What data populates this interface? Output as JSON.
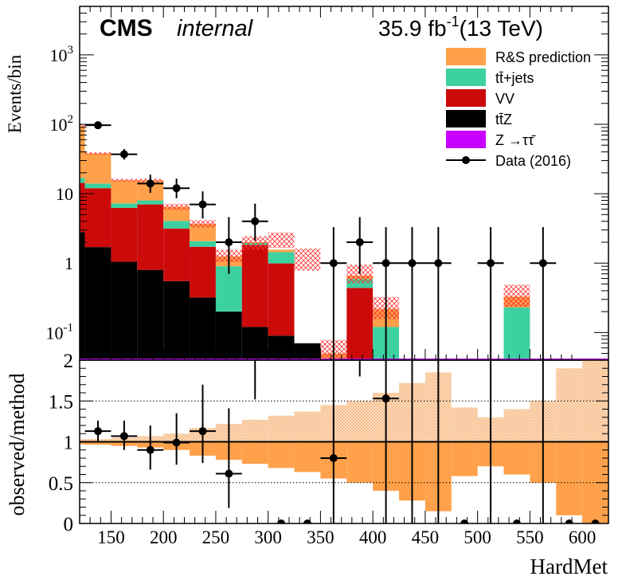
{
  "chart_data": [
    {
      "type": "bar",
      "stacked": true,
      "yscale": "log",
      "header": {
        "experiment": "CMS",
        "status": "internal",
        "lumi": "35.9 fb",
        "lumi_exp": "-1",
        "energy": "(13 TeV)"
      },
      "ylabel": "Events/bin",
      "ylim": [
        0.04,
        5000
      ],
      "yticks": [
        {
          "value": 0.1,
          "label": "10",
          "exp": "-1"
        },
        {
          "value": 1,
          "label": "1",
          "exp": ""
        },
        {
          "value": 10,
          "label": "10",
          "exp": ""
        },
        {
          "value": 100,
          "label": "10",
          "exp": "2"
        },
        {
          "value": 1000,
          "label": "10",
          "exp": "3"
        }
      ],
      "bin_edges": [
        100,
        125,
        150,
        175,
        200,
        225,
        250,
        275,
        300,
        325,
        350,
        375,
        400,
        425,
        450,
        475,
        500,
        525,
        550,
        575,
        600,
        625
      ],
      "series": [
        {
          "name": "tt̄Z",
          "color": "#000000",
          "values": [
            2.8,
            1.7,
            1.05,
            0.8,
            0.55,
            0.32,
            0.2,
            0.12,
            0.09,
            0.07,
            0,
            0,
            0,
            0,
            0,
            0,
            0,
            0,
            0,
            0,
            0
          ]
        },
        {
          "name": "VV",
          "color": "#cc0a0a",
          "values": [
            11.5,
            10.3,
            5.2,
            6.2,
            2.6,
            1.4,
            0,
            1.7,
            0.9,
            0,
            0,
            0.44,
            0,
            0,
            0,
            0,
            0,
            0,
            0,
            0,
            0
          ]
        },
        {
          "name": "tt̄+jets",
          "color": "#3dd1a0",
          "values": [
            2.5,
            2.0,
            1.0,
            1.0,
            0.9,
            0.35,
            0.7,
            0.13,
            0.45,
            0,
            0,
            0.15,
            0.12,
            0,
            0,
            0,
            0,
            0.23,
            0,
            0,
            0
          ]
        },
        {
          "name": "Z →ττ̄",
          "color": "#c800ff",
          "values": [
            0.065,
            0,
            0,
            0,
            0,
            0,
            0,
            0,
            0,
            0,
            0,
            0,
            0,
            0,
            0,
            0,
            0,
            0,
            0,
            0,
            0
          ]
        },
        {
          "name": "R&S prediction",
          "color": "#ffa14a",
          "values": [
            78,
            24,
            8.3,
            7.5,
            2.4,
            1.6,
            0.35,
            0.05,
            0.12,
            0,
            0.05,
            0.07,
            0.1,
            0,
            0,
            0,
            0,
            0.1,
            0,
            0,
            0
          ]
        }
      ],
      "band_total": [
        95,
        38,
        15.6,
        15.5,
        6.5,
        3.7,
        1.3,
        2.0,
        2.2,
        1.2,
        0.06,
        0.73,
        0.24,
        0,
        0,
        0,
        0,
        0.36,
        0,
        0,
        0
      ],
      "band_rel_err": [
        0.04,
        0.04,
        0.05,
        0.06,
        0.1,
        0.12,
        0.2,
        0.22,
        0.25,
        0.35,
        0.3,
        0.3,
        0.35,
        0,
        0,
        0,
        0,
        0.35,
        0,
        0,
        0
      ],
      "data": {
        "name": "Data (2016)",
        "points": [
          {
            "x": 137.5,
            "y": 97,
            "err_up": 11,
            "err_dn": 10
          },
          {
            "x": 162.5,
            "y": 37,
            "err_up": 7,
            "err_dn": 6
          },
          {
            "x": 187.5,
            "y": 14,
            "err_up": 4.8,
            "err_dn": 3.7
          },
          {
            "x": 212.5,
            "y": 12,
            "err_up": 4.5,
            "err_dn": 3.4
          },
          {
            "x": 237.5,
            "y": 7,
            "err_up": 3.8,
            "err_dn": 2.6
          },
          {
            "x": 262.5,
            "y": 2,
            "err_up": 2.6,
            "err_dn": 1.3
          },
          {
            "x": 287.5,
            "y": 4,
            "err_up": 3.2,
            "err_dn": 1.9
          },
          {
            "x": 362.5,
            "y": 1,
            "err_up": 2.3,
            "err_dn": 0.99
          },
          {
            "x": 387.5,
            "y": 2,
            "err_up": 2.6,
            "err_dn": 1.3
          },
          {
            "x": 412.5,
            "y": 1,
            "err_up": 2.3,
            "err_dn": 0.99
          },
          {
            "x": 437.5,
            "y": 1,
            "err_up": 2.3,
            "err_dn": 0.99
          },
          {
            "x": 462.5,
            "y": 1,
            "err_up": 2.3,
            "err_dn": 0.99
          },
          {
            "x": 512.5,
            "y": 1,
            "err_up": 2.3,
            "err_dn": 0.99
          },
          {
            "x": 562.5,
            "y": 1,
            "err_up": 2.3,
            "err_dn": 0.99
          }
        ]
      },
      "legend": {
        "placement": "top-right",
        "entries": [
          {
            "label": "R&S prediction",
            "kind": "fill",
            "color": "#ffa14a"
          },
          {
            "label": "tt̄+jets",
            "kind": "fill",
            "color": "#3dd1a0"
          },
          {
            "label": "VV",
            "kind": "fill",
            "color": "#cc0a0a"
          },
          {
            "label": "tt̄Z",
            "kind": "fill",
            "color": "#000000"
          },
          {
            "label": "Z →ττ̄",
            "kind": "fill",
            "color": "#c800ff"
          },
          {
            "label": "Data (2016)",
            "kind": "marker",
            "color": "#000000"
          }
        ]
      }
    },
    {
      "type": "bar",
      "xlabel": "HardMet",
      "ylabel": "observed/method",
      "xlim": [
        120,
        625
      ],
      "ylim": [
        0,
        2
      ],
      "xticks": [
        150,
        200,
        250,
        300,
        350,
        400,
        450,
        500,
        550,
        600
      ],
      "yticks": [
        {
          "value": 0,
          "label": "0"
        },
        {
          "value": 0.5,
          "label": "0.5"
        },
        {
          "value": 1,
          "label": "1"
        },
        {
          "value": 1.5,
          "label": "1.5"
        },
        {
          "value": 2,
          "label": "2"
        }
      ],
      "reference_lines": [
        1
      ],
      "dotted_lines": [
        0.5,
        1.5
      ],
      "bin_edges": [
        100,
        125,
        150,
        175,
        200,
        225,
        250,
        275,
        300,
        325,
        350,
        375,
        400,
        425,
        450,
        475,
        500,
        525,
        550,
        575,
        600,
        625
      ],
      "band_rel_err": [
        0.03,
        0.035,
        0.05,
        0.07,
        0.1,
        0.17,
        0.22,
        0.27,
        0.32,
        0.37,
        0.45,
        0.5,
        0.6,
        0.72,
        0.85,
        0.42,
        0.3,
        0.4,
        0.5,
        0.9,
        1.0,
        0.3
      ],
      "colors": {
        "band": "#ffa14a",
        "hatch": "#f7c79a"
      },
      "ratio_points": [
        {
          "x": 137.5,
          "y": 1.13,
          "err_up": 0.13,
          "err_dn": 0.12
        },
        {
          "x": 162.5,
          "y": 1.07,
          "err_up": 0.19,
          "err_dn": 0.17
        },
        {
          "x": 187.5,
          "y": 0.9,
          "err_up": 0.3,
          "err_dn": 0.24
        },
        {
          "x": 212.5,
          "y": 0.99,
          "err_up": 0.36,
          "err_dn": 0.27
        },
        {
          "x": 237.5,
          "y": 1.13,
          "err_up": 0.57,
          "err_dn": 0.39
        },
        {
          "x": 262.5,
          "y": 0.61,
          "err_up": 0.8,
          "err_dn": 0.42
        },
        {
          "x": 287.5,
          "y": 2.4,
          "err_up": 1.5,
          "err_dn": 0.88
        },
        {
          "x": 312.5,
          "y": 0,
          "err_up": 0,
          "err_dn": 0
        },
        {
          "x": 337.5,
          "y": 0,
          "err_up": 0,
          "err_dn": 0
        },
        {
          "x": 362.5,
          "y": 0.8,
          "err_up": 1.9,
          "err_dn": 0.8
        },
        {
          "x": 387.5,
          "y": 3.3,
          "err_up": 3,
          "err_dn": 1.5
        },
        {
          "x": 412.5,
          "y": 1.53,
          "err_up": 3.5,
          "err_dn": 1.53
        },
        {
          "x": 437.5,
          "y": 4,
          "err_up": 4,
          "err_dn": 4
        },
        {
          "x": 462.5,
          "y": 4,
          "err_up": 4,
          "err_dn": 4
        },
        {
          "x": 487.5,
          "y": 0,
          "err_up": 0,
          "err_dn": 0
        },
        {
          "x": 512.5,
          "y": 4,
          "err_up": 4,
          "err_dn": 4
        },
        {
          "x": 537.5,
          "y": 0,
          "err_up": 0,
          "err_dn": 0
        },
        {
          "x": 562.5,
          "y": 4,
          "err_up": 4,
          "err_dn": 4
        },
        {
          "x": 587.5,
          "y": 0,
          "err_up": 0,
          "err_dn": 0
        },
        {
          "x": 612.5,
          "y": 0,
          "err_up": 0,
          "err_dn": 0
        }
      ]
    }
  ]
}
